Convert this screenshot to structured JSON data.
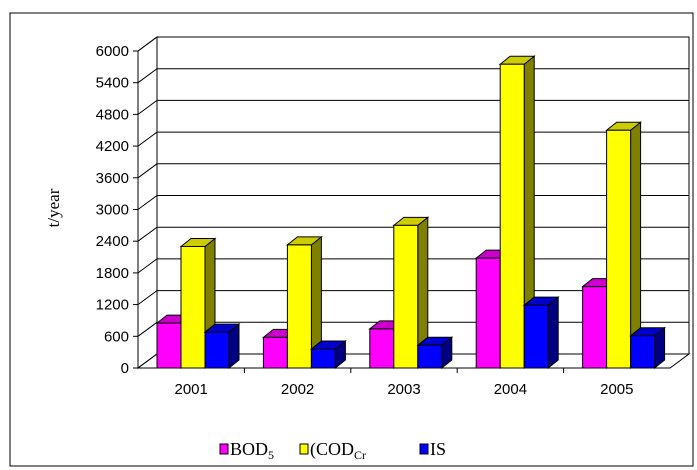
{
  "chart_data": {
    "type": "bar",
    "title": "",
    "xlabel": "",
    "ylabel": "t/year",
    "categories": [
      "2001",
      "2002",
      "2003",
      "2004",
      "2005"
    ],
    "ylim": [
      0,
      6000
    ],
    "yticks": [
      0,
      600,
      1200,
      1800,
      2400,
      3000,
      3600,
      4200,
      4800,
      5400,
      6000
    ],
    "grid": true,
    "legend_position": "bottom",
    "series": [
      {
        "name": "BOD5",
        "name_main": "BOD",
        "name_sub": "5",
        "color": "#ff00ff",
        "values": [
          850,
          580,
          740,
          2080,
          1540
        ]
      },
      {
        "name": "CODCr",
        "name_main": "COD",
        "name_sub": "Cr",
        "legend_prefix": "(",
        "color": "#ffff00",
        "values": [
          2300,
          2330,
          2700,
          5750,
          4500
        ]
      },
      {
        "name": "IS",
        "name_main": "IS",
        "name_sub": "",
        "color": "#0000ff",
        "values": [
          680,
          360,
          430,
          1190,
          610
        ]
      }
    ]
  }
}
